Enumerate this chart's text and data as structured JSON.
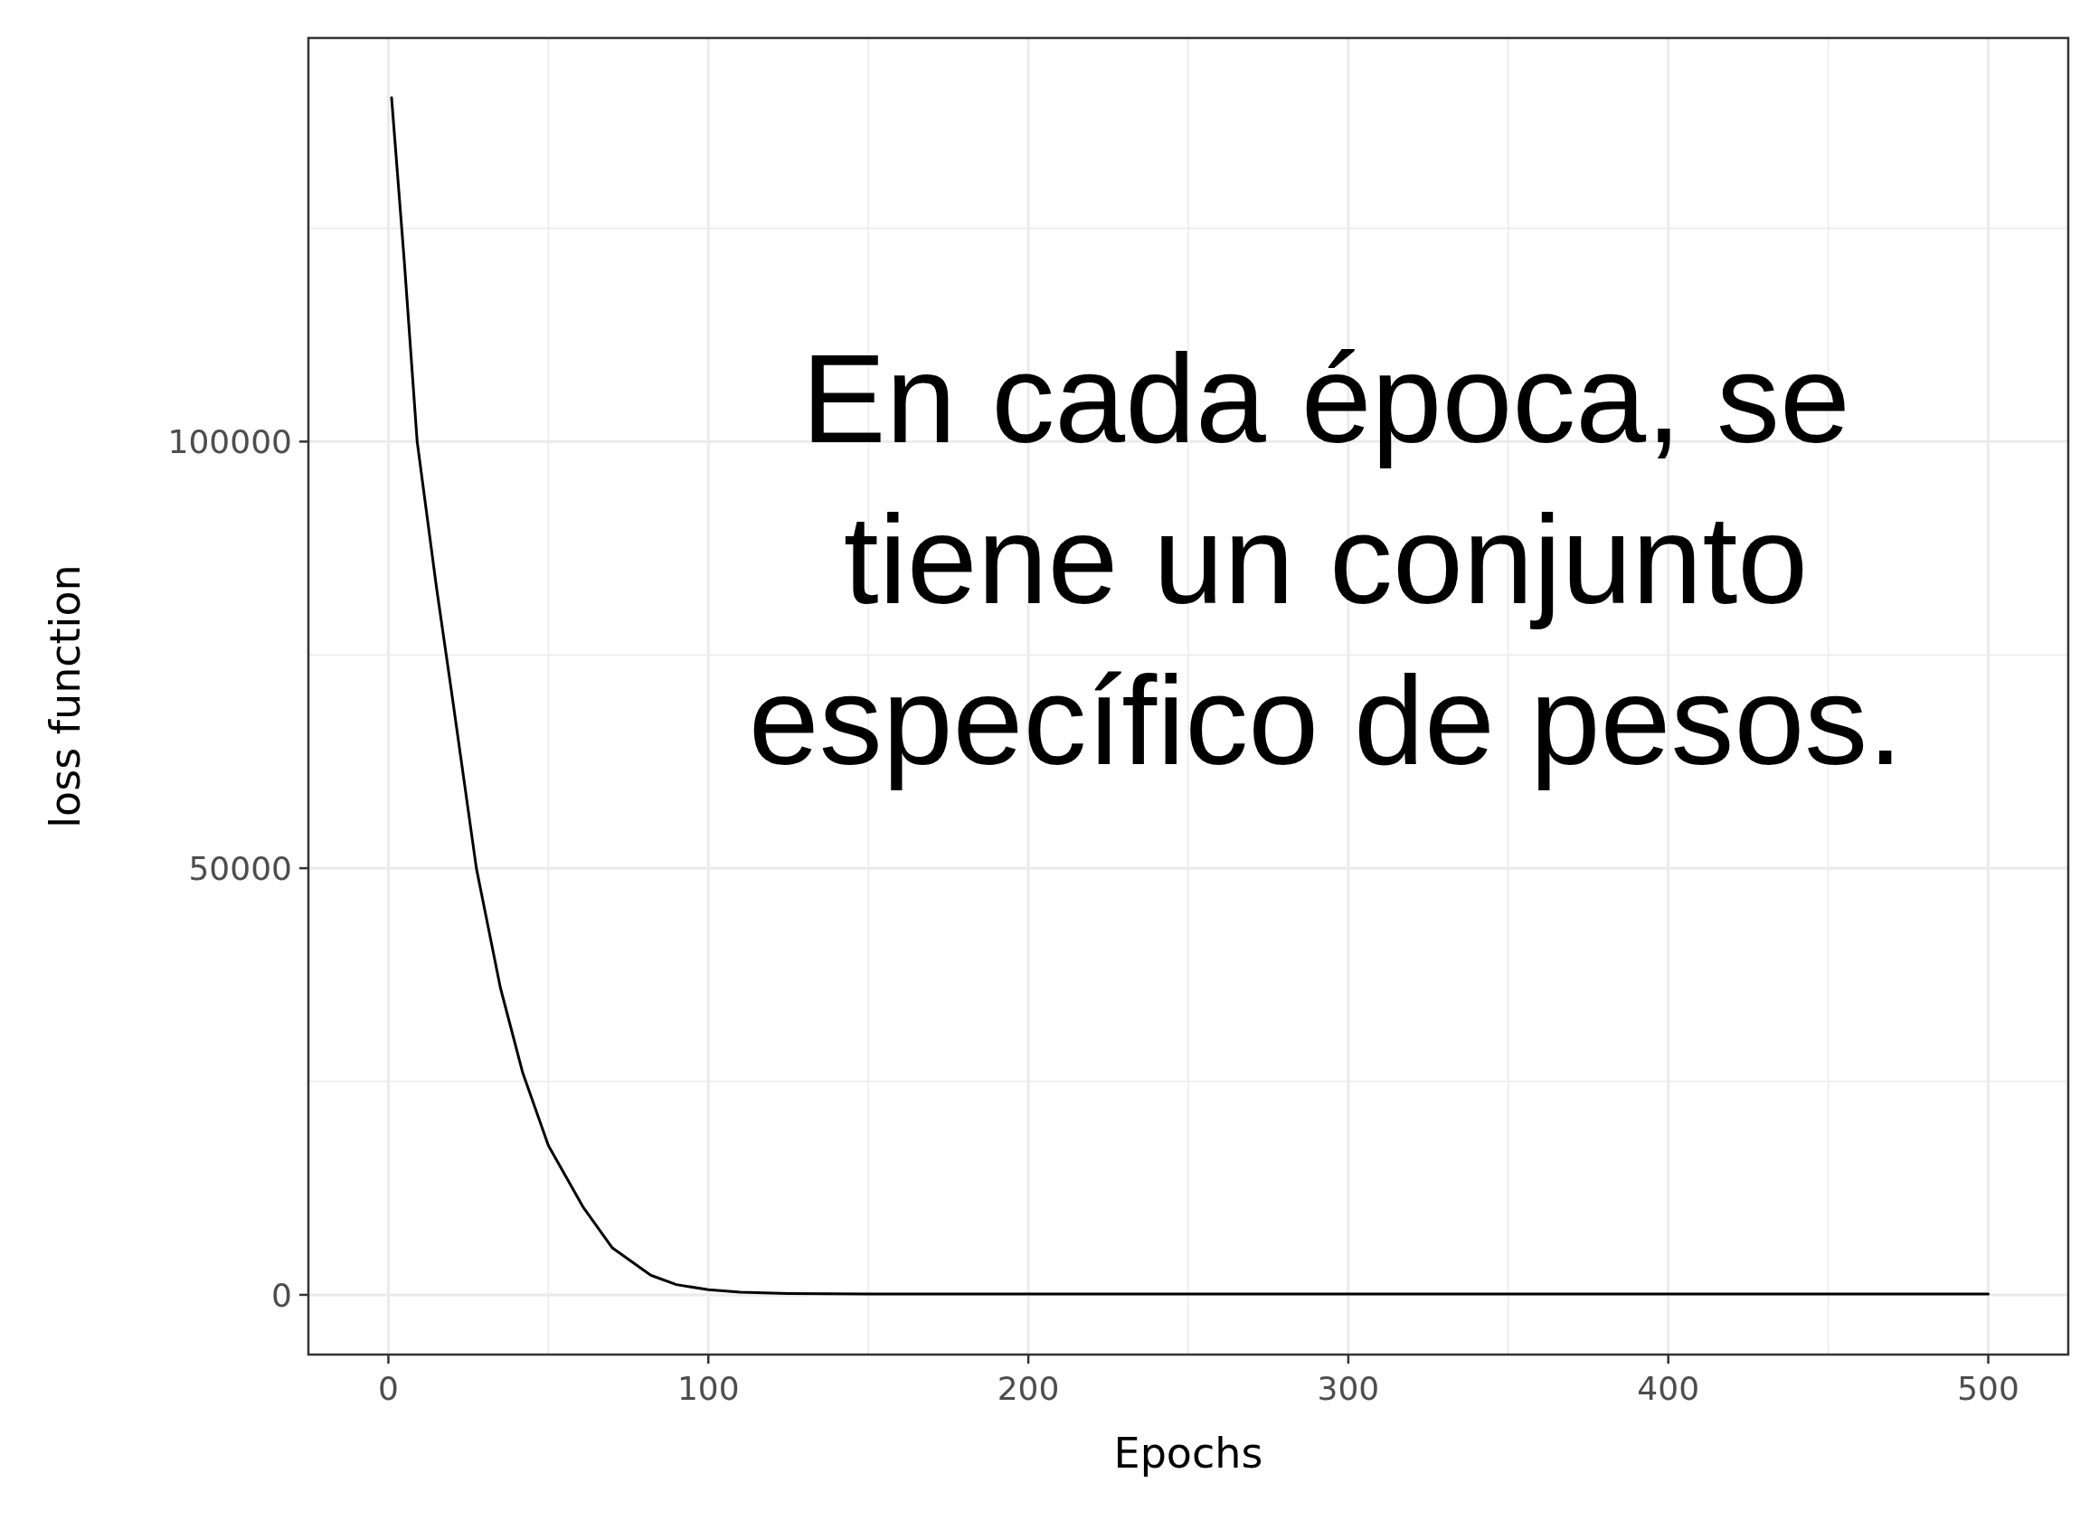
{
  "chart_data": {
    "type": "line",
    "xlabel": "Epochs",
    "ylabel": "loss function",
    "x": [
      1,
      5,
      9,
      15,
      20,
      27.5,
      35,
      42,
      50,
      61,
      70,
      82,
      90,
      100,
      110,
      125,
      150,
      200,
      300,
      400,
      500
    ],
    "series": [
      {
        "color": "#000000",
        "values": [
          140300,
          121000,
          100000,
          83000,
          70000,
          50000,
          36000,
          26000,
          17500,
          10200,
          5500,
          2300,
          1200,
          600,
          300,
          150,
          100,
          100,
          100,
          100,
          100
        ]
      }
    ],
    "xlim": [
      -25,
      525
    ],
    "ylim": [
      -7000,
      147300
    ],
    "xticks": [
      0,
      {
        "value": 50,
        "label": null
      },
      100,
      {
        "value": 150,
        "label": null
      },
      200,
      {
        "value": 250,
        "label": null
      },
      300,
      {
        "value": 350,
        "label": null
      },
      400,
      {
        "value": 450,
        "label": null
      },
      500
    ],
    "yticks": [
      0,
      {
        "value": 25000,
        "label": null
      },
      50000,
      {
        "value": 75000,
        "label": null
      },
      100000,
      {
        "value": 125000,
        "label": null
      }
    ],
    "grid": true,
    "marker": "none",
    "line_style": "solid",
    "annotations": [
      "En cada época, se tiene un conjunto específico de pesos."
    ]
  }
}
